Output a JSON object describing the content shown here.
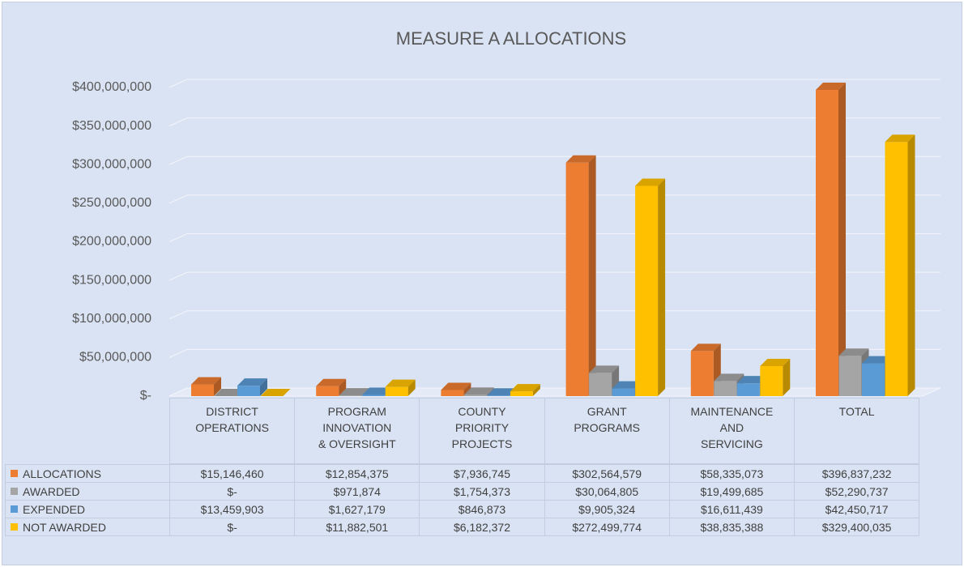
{
  "chart_data": {
    "type": "bar3d",
    "title": "MEASURE A ALLOCATIONS",
    "categories": [
      "DISTRICT\nOPERATIONS",
      "PROGRAM\nINNOVATION\n& OVERSIGHT",
      "COUNTY\nPRIORITY\nPROJECTS",
      "GRANT\nPROGRAMS",
      "MAINTENANCE\nAND\nSERVICING",
      "TOTAL"
    ],
    "series": [
      {
        "name": "ALLOCATIONS",
        "color": "#ed7d31",
        "values": [
          15146460,
          12854375,
          7936745,
          302564579,
          58335073,
          396837232
        ],
        "value_labels": [
          "$15,146,460",
          "$12,854,375",
          "$7,936,745",
          "$302,564,579",
          "$58,335,073",
          "$396,837,232"
        ]
      },
      {
        "name": "AWARDED",
        "color": "#a5a5a5",
        "values": [
          0,
          971874,
          1754373,
          30064805,
          19499685,
          52290737
        ],
        "value_labels": [
          "$-",
          "$971,874",
          "$1,754,373",
          "$30,064,805",
          "$19,499,685",
          "$52,290,737"
        ]
      },
      {
        "name": "EXPENDED",
        "color": "#5b9bd5",
        "values": [
          13459903,
          1627179,
          846873,
          9905324,
          16611439,
          42450717
        ],
        "value_labels": [
          "$13,459,903",
          "$1,627,179",
          "$846,873",
          "$9,905,324",
          "$16,611,439",
          "$42,450,717"
        ]
      },
      {
        "name": "NOT AWARDED",
        "color": "#ffc000",
        "values": [
          0,
          11882501,
          6182372,
          272499774,
          38835388,
          329400035
        ],
        "value_labels": [
          "$-",
          "$11,882,501",
          "$6,182,372",
          "$272,499,774",
          "$38,835,388",
          "$329,400,035"
        ]
      }
    ],
    "ylim": [
      0,
      400000000
    ],
    "yticks": [
      {
        "value": 0,
        "label": "$-"
      },
      {
        "value": 50000000,
        "label": "$50,000,000"
      },
      {
        "value": 100000000,
        "label": "$100,000,000"
      },
      {
        "value": 150000000,
        "label": "$150,000,000"
      },
      {
        "value": 200000000,
        "label": "$200,000,000"
      },
      {
        "value": 250000000,
        "label": "$250,000,000"
      },
      {
        "value": 300000000,
        "label": "$300,000,000"
      },
      {
        "value": 350000000,
        "label": "$350,000,000"
      },
      {
        "value": 400000000,
        "label": "$400,000,000"
      }
    ],
    "grid": true
  }
}
